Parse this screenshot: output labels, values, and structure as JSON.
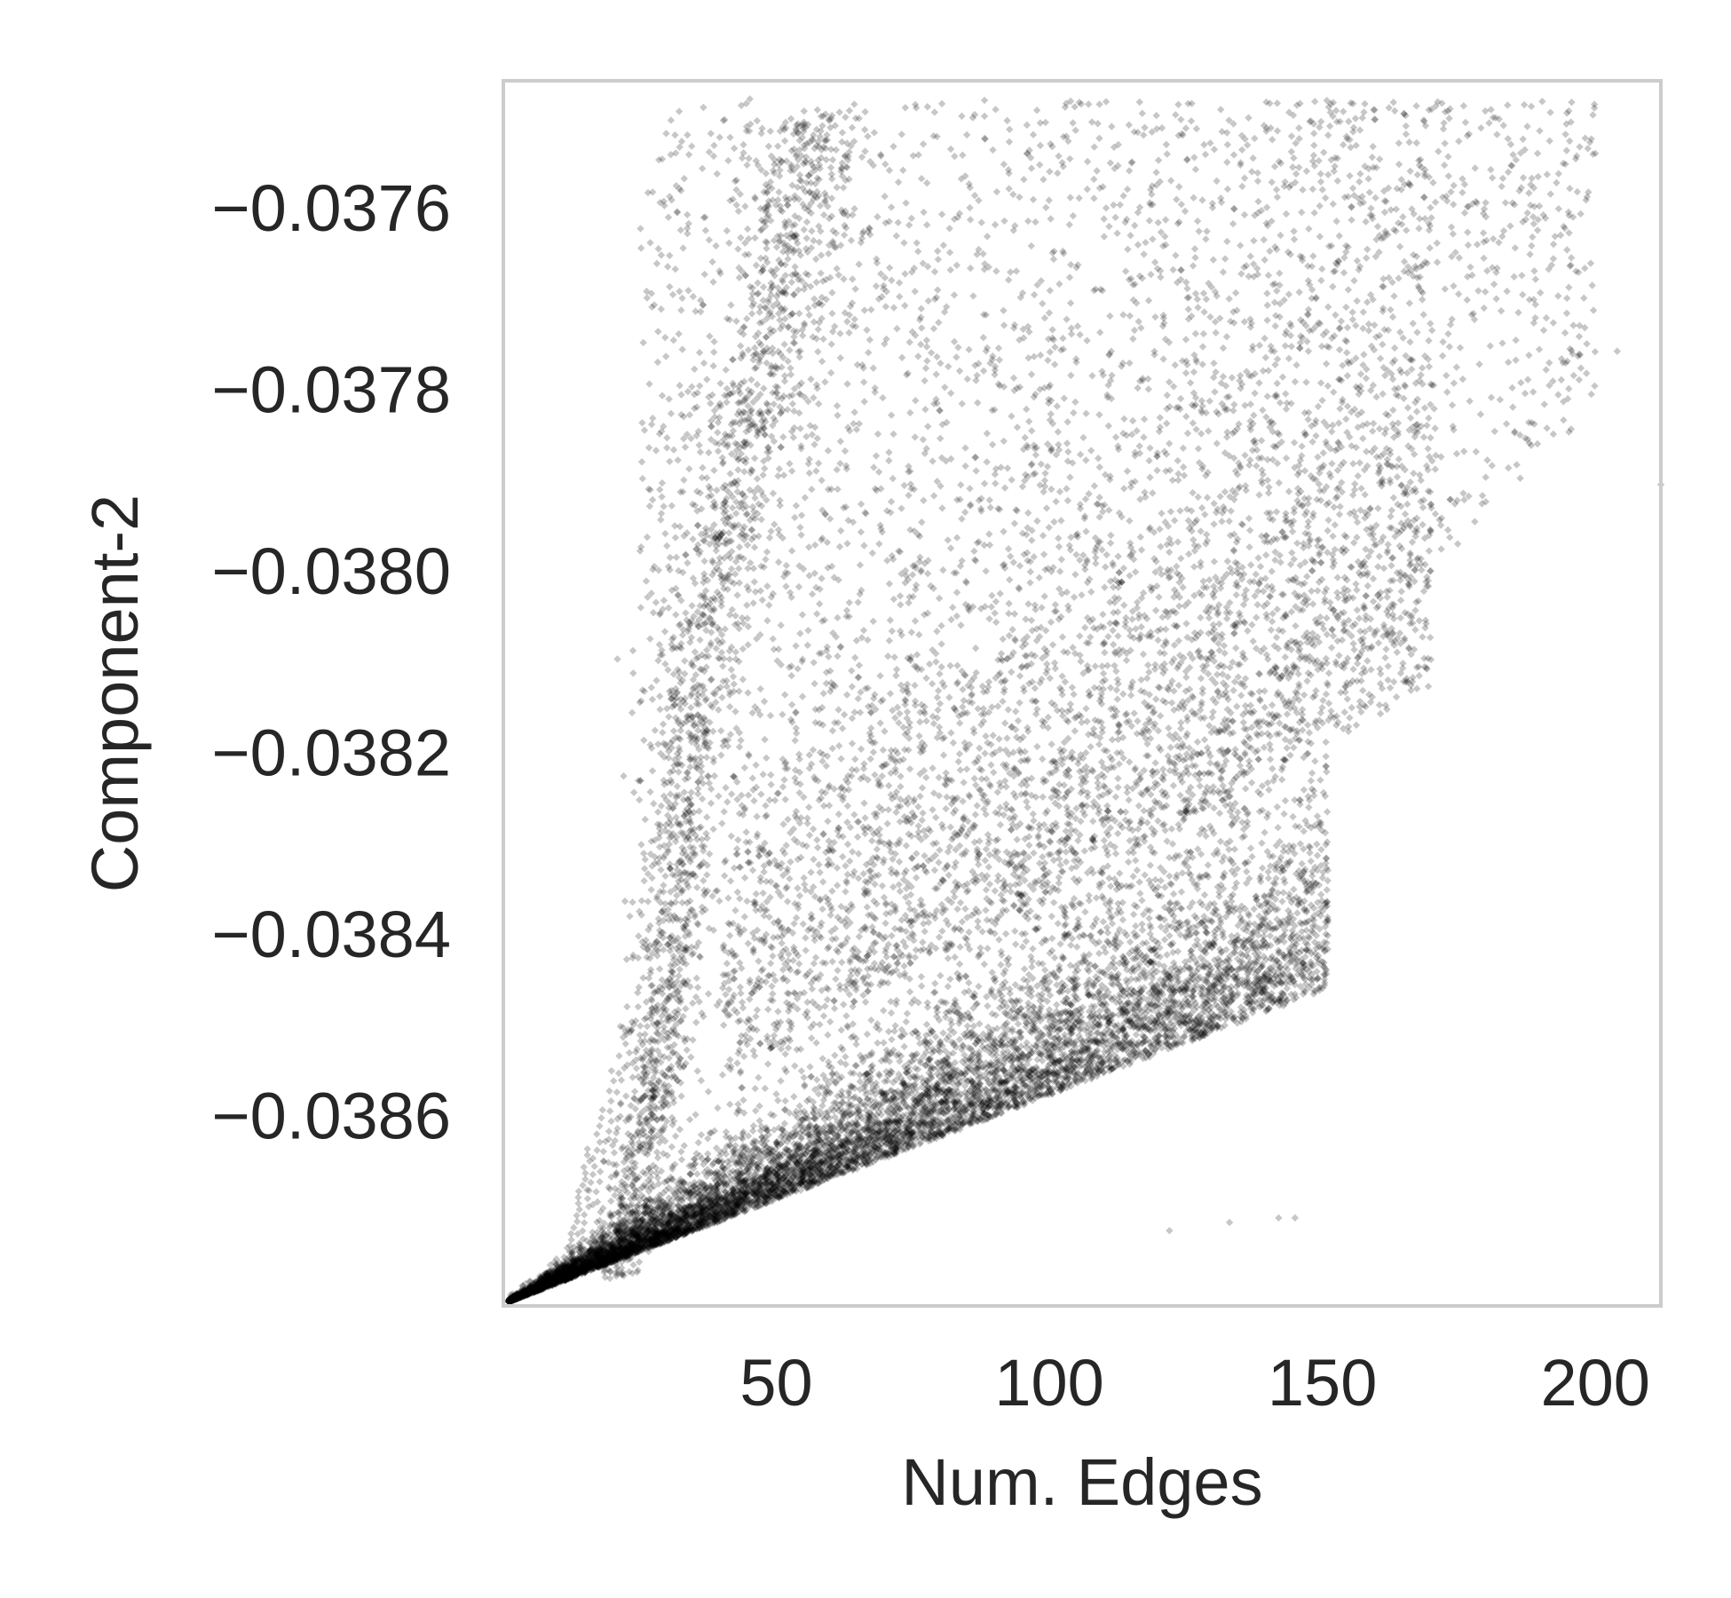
{
  "chart_data": {
    "type": "scatter",
    "title": "",
    "xlabel": "Num. Edges",
    "ylabel": "Component-2",
    "xlim": [
      0,
      212
    ],
    "ylim": [
      -0.03881,
      -0.03746
    ],
    "xticks": [
      {
        "value": 50,
        "label": "50"
      },
      {
        "value": 100,
        "label": "100"
      },
      {
        "value": 150,
        "label": "150"
      },
      {
        "value": 200,
        "label": "200"
      }
    ],
    "yticks": [
      {
        "value": -0.0376,
        "label": "−0.0376"
      },
      {
        "value": -0.0378,
        "label": "−0.0378"
      },
      {
        "value": -0.038,
        "label": "−0.0380"
      },
      {
        "value": -0.0382,
        "label": "−0.0382"
      },
      {
        "value": -0.0384,
        "label": "−0.0384"
      },
      {
        "value": -0.0386,
        "label": "−0.0386"
      }
    ],
    "grid": false,
    "marker": "diamond",
    "point_color": "#000000",
    "point_alpha": 0.22,
    "frame_color": "#cccccc",
    "series": [
      {
        "description_points": [
          [
            1,
            -0.038808
          ],
          [
            10,
            -0.03879
          ],
          [
            20,
            -0.03877
          ],
          [
            30,
            -0.038745
          ],
          [
            50,
            -0.0387
          ],
          [
            75,
            -0.03865
          ],
          [
            100,
            -0.0386
          ],
          [
            130,
            -0.03855
          ],
          [
            45,
            -0.0381
          ],
          [
            40,
            -0.0383
          ],
          [
            35,
            -0.0385
          ],
          [
            55,
            -0.0376
          ],
          [
            60,
            -0.03775
          ],
          [
            48,
            -0.0379
          ],
          [
            150,
            -0.0377
          ],
          [
            170,
            -0.0379
          ],
          [
            25,
            -0.0378
          ],
          [
            38,
            -0.0382
          ],
          [
            200,
            -0.03754
          ],
          [
            120,
            -0.0384
          ],
          [
            90,
            -0.0383
          ],
          [
            110,
            -0.0382
          ],
          [
            140,
            -0.03835
          ],
          [
            160,
            -0.03815
          ],
          [
            185,
            -0.038
          ],
          [
            80,
            -0.0379
          ],
          [
            100,
            -0.0376
          ],
          [
            130,
            -0.0378
          ]
        ]
      }
    ]
  }
}
